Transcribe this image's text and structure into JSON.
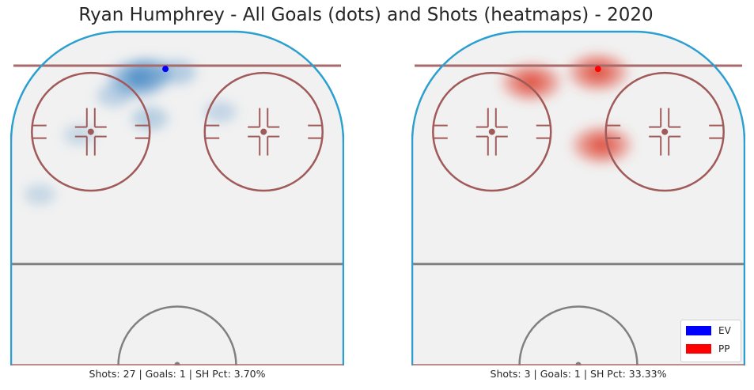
{
  "title": "Ryan Humphrey - All Goals (dots) and Shots (heatmaps) - 2020",
  "panels": [
    {
      "caption": "Shots: 27 | Goals: 1 | SH Pct: 3.70%"
    },
    {
      "caption": "Shots: 3 | Goals: 1 | SH Pct: 33.33%"
    }
  ],
  "legend": {
    "placement": "bottom-right",
    "items": [
      {
        "label": "EV",
        "color": "#0000ff"
      },
      {
        "label": "PP",
        "color": "#ff0000"
      }
    ]
  },
  "colors": {
    "boards": "#2a9fd0",
    "goal_line": "#a86a6a",
    "faceoff": "#a05a5a",
    "center_line": "#808080",
    "ice": "#f1f1f1",
    "ev_heat": "#4d8ec7",
    "pp_heat": "#e0493a"
  },
  "chart_data": [
    {
      "type": "heatmap",
      "title": "All Goals (dots) and Shots (heatmaps)",
      "situation": "EV",
      "shots": 27,
      "goals": 1,
      "sh_pct": "3.70%",
      "goal_points": [
        {
          "x": -3,
          "y": 88
        }
      ],
      "shot_density_centers": [
        {
          "x": -10,
          "y": 85,
          "weight": 1.0
        },
        {
          "x": -7,
          "y": 87,
          "weight": 0.6
        },
        {
          "x": 0,
          "y": 87,
          "weight": 0.4
        },
        {
          "x": -16,
          "y": 80,
          "weight": 0.3
        },
        {
          "x": -7,
          "y": 73,
          "weight": 0.35
        },
        {
          "x": 11,
          "y": 75,
          "weight": 0.2
        },
        {
          "x": -25,
          "y": 68,
          "weight": 0.15
        },
        {
          "x": -35,
          "y": 50,
          "weight": 0.15
        }
      ]
    },
    {
      "type": "heatmap",
      "title": "All Goals (dots) and Shots (heatmaps)",
      "situation": "PP",
      "shots": 3,
      "goals": 1,
      "sh_pct": "33.33%",
      "goal_points": [
        {
          "x": 5,
          "y": 88
        }
      ],
      "shot_density_centers": [
        {
          "x": -12,
          "y": 84,
          "weight": 1.0
        },
        {
          "x": 5,
          "y": 87,
          "weight": 1.0
        },
        {
          "x": 6,
          "y": 65,
          "weight": 1.0
        }
      ]
    }
  ]
}
